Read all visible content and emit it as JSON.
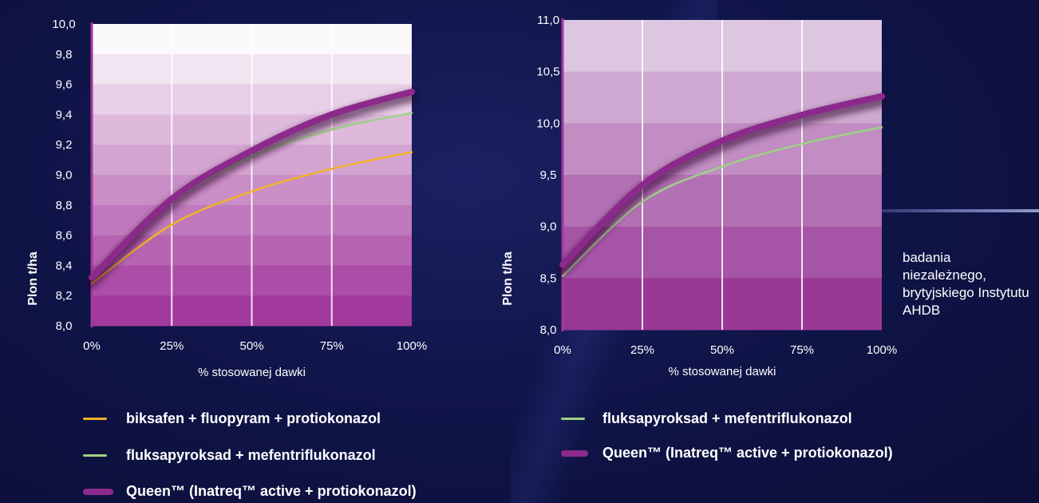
{
  "chart_data": [
    {
      "type": "line",
      "ylabel": "Plon  t/ha",
      "xlabel": "% stosowanej dawki",
      "x_ticks": [
        "0%",
        "25%",
        "50%",
        "75%",
        "100%"
      ],
      "y_ticks": [
        "8,0",
        "8,2",
        "8,4",
        "8,6",
        "8,8",
        "9,0",
        "9,2",
        "9,4",
        "9,6",
        "9,8",
        "10,0"
      ],
      "xlim": [
        0,
        100
      ],
      "ylim": [
        8.0,
        10.0
      ],
      "x": [
        0,
        25,
        50,
        75,
        100
      ],
      "series": [
        {
          "name": "biksafen + fluopyram + protiokonazol",
          "color": "#f2b327",
          "values": [
            8.28,
            8.67,
            8.89,
            9.04,
            9.15
          ]
        },
        {
          "name": "fluksapyroksad + mefentriflukonazol",
          "color": "#9ed186",
          "values": [
            8.31,
            8.82,
            9.12,
            9.3,
            9.41
          ]
        },
        {
          "name": "Queen™ (Inatreq™ active + protiokonazol)",
          "color": "#8c2a8c",
          "values": [
            8.32,
            8.84,
            9.16,
            9.4,
            9.55
          ]
        }
      ]
    },
    {
      "type": "line",
      "ylabel": "Plon  t/ha",
      "xlabel": "% stosowanej dawki",
      "x_ticks": [
        "0%",
        "25%",
        "50%",
        "75%",
        "100%"
      ],
      "y_ticks": [
        "8,0",
        "8,5",
        "9,0",
        "9,5",
        "10,0",
        "10,5",
        "11,0"
      ],
      "xlim": [
        0,
        100
      ],
      "ylim": [
        8.0,
        11.0
      ],
      "x": [
        0,
        25,
        50,
        75,
        100
      ],
      "series": [
        {
          "name": "fluksapyroksad + mefentriflukonazol",
          "color": "#9ed186",
          "values": [
            8.52,
            9.24,
            9.58,
            9.8,
            9.96
          ]
        },
        {
          "name": "Queen™ (Inatreq™ active + protiokonazol)",
          "color": "#8c2a8c",
          "values": [
            8.63,
            9.4,
            9.83,
            10.08,
            10.26
          ]
        }
      ]
    }
  ],
  "note": "badania niezależnego, brytyjskiego Instytutu AHDB",
  "legend_left": [
    {
      "label": "biksafen + fluopyram + protiokonazol",
      "color": "#f2b327"
    },
    {
      "label": "fluksapyroksad + mefentriflukonazol",
      "color": "#9ed186"
    },
    {
      "label": "Queen™ (Inatreq™ active + protiokonazol)",
      "color": "#8c2a8c"
    }
  ],
  "legend_right": [
    {
      "label": "fluksapyroksad + mefentriflukonazol",
      "color": "#9ed186"
    },
    {
      "label": "Queen™ (Inatreq™ active + protiokonazol)",
      "color": "#8c2a8c"
    }
  ]
}
